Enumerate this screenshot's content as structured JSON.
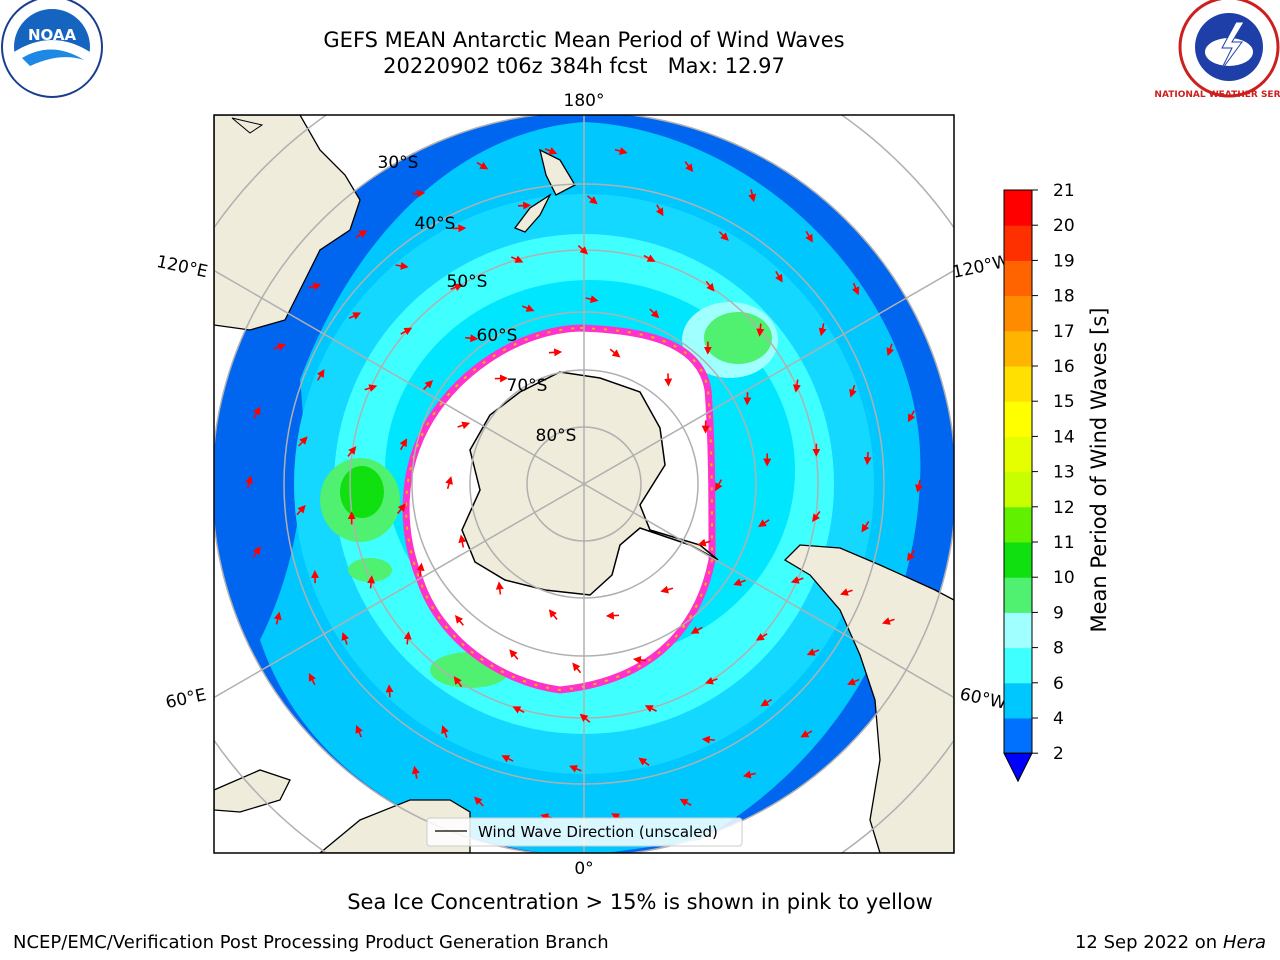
{
  "title": "GEFS MEAN Antarctic Mean Period of Wind Waves",
  "subtitle": "20220902 t06z 384h fcst   Max: 12.97",
  "logos": {
    "left": "NOAA",
    "right": "NATIONAL WEATHER SERVICE"
  },
  "longitude_labels": {
    "top": "180°",
    "bottom": "0°",
    "left_upper": "120°E",
    "left_lower": "60°E",
    "right_upper": "120°W",
    "right_lower": "60°W"
  },
  "latitude_labels": [
    "30°S",
    "40°S",
    "50°S",
    "60°S",
    "70°S",
    "80°S"
  ],
  "legend": {
    "label": "Wind Wave Direction (unscaled)"
  },
  "colorbar": {
    "label": "Mean Period of Wind Waves [s]",
    "ticks": [
      "2",
      "4",
      "6",
      "8",
      "9",
      "10",
      "11",
      "12",
      "13",
      "14",
      "15",
      "16",
      "17",
      "18",
      "19",
      "20",
      "21"
    ],
    "colors": [
      "#0070ff",
      "#00c8ff",
      "#40ffff",
      "#a0ffff",
      "#50f070",
      "#10e010",
      "#60f000",
      "#c8ff00",
      "#e6ff00",
      "#ffff00",
      "#ffe000",
      "#ffb400",
      "#ff8c00",
      "#ff6400",
      "#ff3000",
      "#ff0000"
    ],
    "under_color": "#0000ff"
  },
  "colors": {
    "land": "#efecdc",
    "arrow": "#ff0000",
    "sea_ice": "#ff33cc",
    "grid": "#b0b0b0"
  },
  "caption": "Sea Ice Concentration > 15% is shown in pink to yellow",
  "footer_left": "NCEP/EMC/Verification Post Processing Product Generation Branch",
  "footer_date": "12 Sep 2022 on",
  "footer_host": "Hera"
}
